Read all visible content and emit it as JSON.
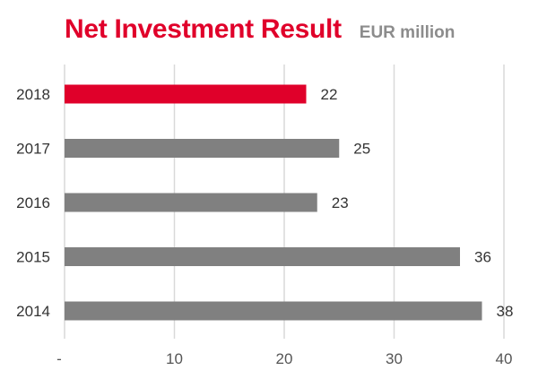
{
  "chart_data": {
    "type": "bar",
    "orientation": "horizontal",
    "title": "Net Investment Result",
    "subtitle": "EUR million",
    "categories": [
      "2018",
      "2017",
      "2016",
      "2015",
      "2014"
    ],
    "values": [
      22,
      25,
      23,
      36,
      38
    ],
    "data_labels": [
      "22",
      "25",
      "23",
      "36",
      "38"
    ],
    "xlim": [
      0,
      40
    ],
    "xticks": [
      0,
      10,
      20,
      30,
      40
    ],
    "xtick_labels": [
      "-",
      "10",
      "20",
      "30",
      "40"
    ],
    "grid": "vertical",
    "colors": {
      "highlight": "#e0002a",
      "default": "#808080",
      "grid": "#d9d9d9",
      "label": "#333333",
      "tick": "#555555"
    },
    "highlight_category": "2018"
  }
}
